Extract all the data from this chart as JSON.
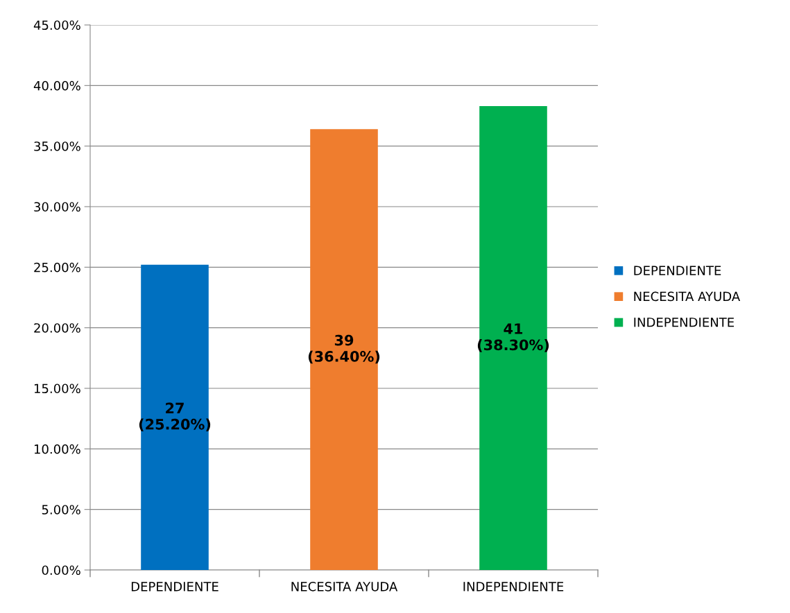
{
  "chart_data": {
    "type": "bar",
    "categories": [
      "DEPENDIENTE",
      "NECESITA AYUDA",
      "INDEPENDIENTE"
    ],
    "series": [
      {
        "name": "DEPENDIENTE",
        "color": "#0070c0",
        "values": [
          25.2,
          null,
          null
        ],
        "value_labels": [
          "27\n(25.20%)",
          null,
          null
        ]
      },
      {
        "name": "NECESITA AYUDA",
        "color": "#ef7d2e",
        "values": [
          null,
          36.4,
          null
        ],
        "value_labels": [
          null,
          "39\n(36.40%)",
          null
        ]
      },
      {
        "name": "INDEPENDIENTE",
        "color": "#00b050",
        "values": [
          null,
          null,
          38.3
        ],
        "value_labels": [
          null,
          null,
          "41\n(38.30%)"
        ]
      }
    ],
    "ylim": [
      0,
      45
    ],
    "yticks": [
      {
        "value": 0,
        "label": "0.00%"
      },
      {
        "value": 5,
        "label": "5.00%"
      },
      {
        "value": 10,
        "label": "10.00%"
      },
      {
        "value": 15,
        "label": "15.00%"
      },
      {
        "value": 20,
        "label": "20.00%"
      },
      {
        "value": 25,
        "label": "25.00%"
      },
      {
        "value": 30,
        "label": "30.00%"
      },
      {
        "value": 35,
        "label": "35.00%"
      },
      {
        "value": 40,
        "label": "40.00%"
      },
      {
        "value": 45,
        "label": "45.00%"
      }
    ],
    "grid": "y",
    "legend": "right"
  }
}
